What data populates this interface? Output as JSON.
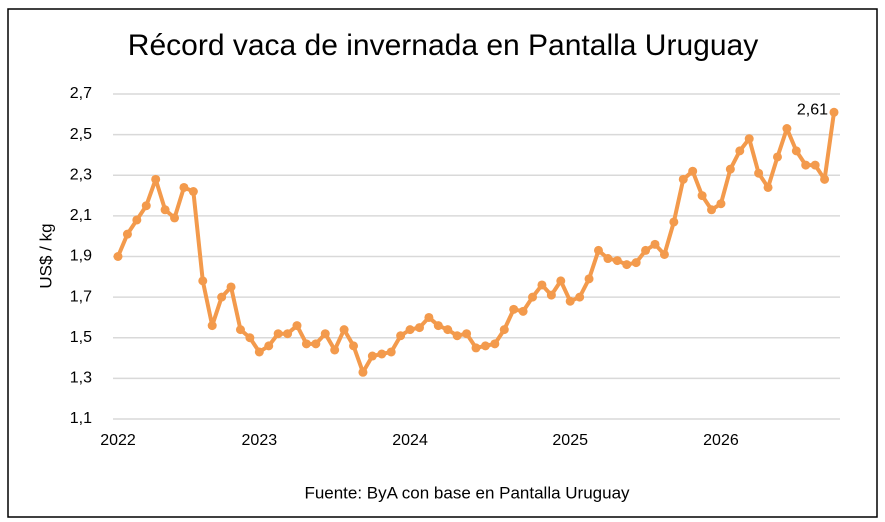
{
  "chart_data": {
    "type": "line",
    "title": "Récord vaca de invernada en Pantalla Uruguay",
    "y_label": "US$ / kg",
    "source": "Fuente: ByA con base en Pantalla Uruguay",
    "categories": [
      "2022",
      null,
      null,
      null,
      null,
      null,
      null,
      null,
      null,
      null,
      null,
      null,
      null,
      null,
      null,
      "2023",
      null,
      null,
      null,
      null,
      null,
      null,
      null,
      null,
      null,
      null,
      null,
      null,
      null,
      null,
      null,
      "2024",
      null,
      null,
      null,
      null,
      null,
      null,
      null,
      null,
      null,
      null,
      null,
      null,
      null,
      null,
      null,
      null,
      "2025",
      null,
      null,
      null,
      null,
      null,
      null,
      null,
      null,
      null,
      null,
      null,
      null,
      null,
      null,
      null,
      "2026",
      null,
      null,
      null,
      null,
      null,
      null,
      null,
      null,
      null,
      null,
      null,
      null
    ],
    "series": [
      {
        "name": "US$ / kg",
        "color": "#f39a4c",
        "values": [
          1.9,
          2.01,
          2.08,
          2.15,
          2.28,
          2.13,
          2.09,
          2.24,
          2.22,
          1.78,
          1.56,
          1.7,
          1.75,
          1.54,
          1.5,
          1.43,
          1.46,
          1.52,
          1.52,
          1.56,
          1.47,
          1.47,
          1.52,
          1.44,
          1.54,
          1.46,
          1.33,
          1.41,
          1.42,
          1.43,
          1.51,
          1.54,
          1.55,
          1.6,
          1.56,
          1.54,
          1.51,
          1.52,
          1.45,
          1.46,
          1.47,
          1.54,
          1.64,
          1.63,
          1.7,
          1.76,
          1.71,
          1.78,
          1.68,
          1.7,
          1.79,
          1.93,
          1.89,
          1.88,
          1.86,
          1.87,
          1.93,
          1.96,
          1.91,
          2.07,
          2.28,
          2.32,
          2.2,
          2.13,
          2.16,
          2.33,
          2.42,
          2.48,
          2.31,
          2.24,
          2.39,
          2.53,
          2.42,
          2.35,
          2.35,
          2.28,
          2.61
        ],
        "value_labels": [
          null,
          null,
          null,
          null,
          null,
          null,
          null,
          null,
          null,
          null,
          null,
          null,
          null,
          null,
          null,
          null,
          null,
          null,
          null,
          null,
          null,
          null,
          null,
          null,
          null,
          null,
          null,
          null,
          null,
          null,
          null,
          null,
          null,
          null,
          null,
          null,
          null,
          null,
          null,
          null,
          null,
          null,
          null,
          null,
          null,
          null,
          null,
          null,
          null,
          null,
          null,
          null,
          null,
          null,
          null,
          null,
          null,
          null,
          null,
          null,
          null,
          null,
          null,
          null,
          null,
          null,
          null,
          null,
          null,
          null,
          null,
          null,
          null,
          null,
          null,
          null,
          "2,61"
        ]
      }
    ],
    "ylim": [
      1.1,
      2.7
    ],
    "yticks": [
      {
        "value": 1.1,
        "label": "1,1"
      },
      {
        "value": 1.3,
        "label": "1,3"
      },
      {
        "value": 1.5,
        "label": "1,5"
      },
      {
        "value": 1.7,
        "label": "1,7"
      },
      {
        "value": 1.9,
        "label": "1,9"
      },
      {
        "value": 2.1,
        "label": "2,1"
      },
      {
        "value": 2.3,
        "label": "2,3"
      },
      {
        "value": 2.5,
        "label": "2,5"
      },
      {
        "value": 2.7,
        "label": "2,7"
      }
    ],
    "grid": true
  }
}
